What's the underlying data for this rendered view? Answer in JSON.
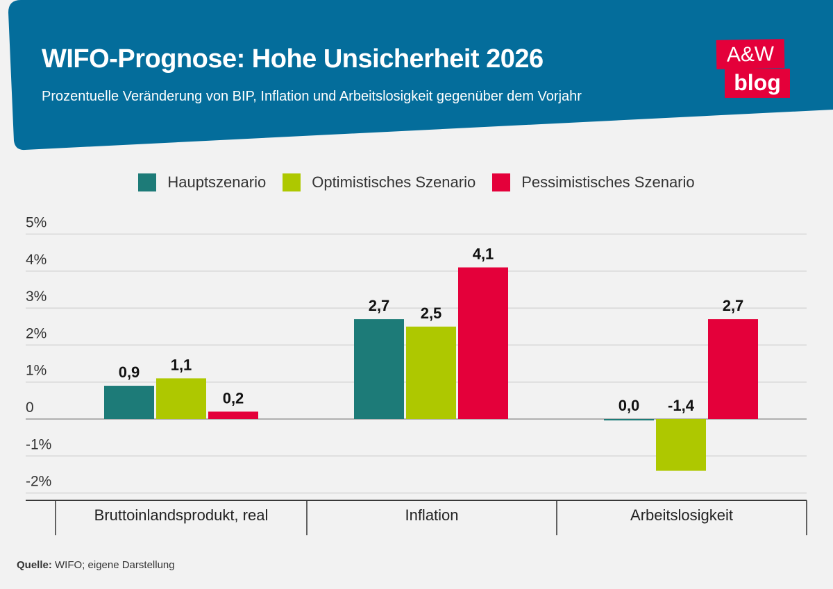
{
  "header": {
    "title": "WIFO-Prognose: Hohe Unsicherheit 2026",
    "subtitle": "Prozentuelle Veränderung von BIP, Inflation und Arbeitslosigkeit gegenüber dem Vorjahr",
    "logo_text": "A&W blog",
    "banner_color": "#046d9b",
    "logo_color": "#e4003a"
  },
  "chart_data": {
    "type": "bar",
    "categories": [
      "Bruttoinlandsprodukt, real",
      "Inflation",
      "Arbeitslosigkeit"
    ],
    "series": [
      {
        "name": "Hauptszenario",
        "color": "#1d7b78",
        "values": [
          0.9,
          2.7,
          0.0
        ],
        "labels": [
          "0,9",
          "2,7",
          "0,0"
        ]
      },
      {
        "name": "Optimistisches Szenario",
        "color": "#aec800",
        "values": [
          1.1,
          2.5,
          -1.4
        ],
        "labels": [
          "1,1",
          "2,5",
          "-1,4"
        ]
      },
      {
        "name": "Pessimistisches Szenario",
        "color": "#e4003a",
        "values": [
          0.2,
          4.1,
          2.7
        ],
        "labels": [
          "0,2",
          "4,1",
          "2,7"
        ]
      }
    ],
    "ylim": [
      -2,
      5
    ],
    "yticks": [
      5,
      4,
      3,
      2,
      1,
      0,
      -1,
      -2
    ],
    "ytick_labels": [
      "5%",
      "4%",
      "3%",
      "2%",
      "1%",
      "0",
      "-1%",
      "-2%"
    ],
    "grid": true,
    "legend_position": "top-center"
  },
  "footer": {
    "source_label": "Quelle:",
    "source_text": " WIFO; eigene Darstellung"
  }
}
